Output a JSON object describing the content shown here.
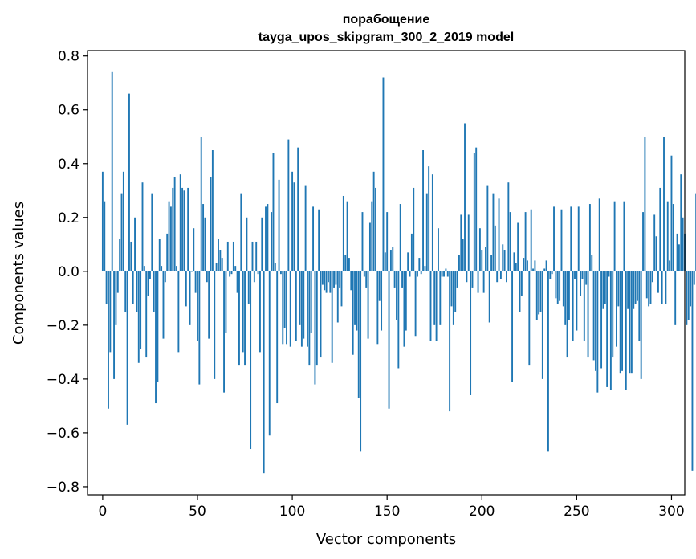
{
  "chart_data": {
    "type": "bar",
    "title": "порабощение",
    "subtitle": "tayga_upos_skipgram_300_2_2019 model",
    "xlabel": "Vector components",
    "ylabel": "Components values",
    "xlim": [
      -8,
      307
    ],
    "ylim": [
      -0.83,
      0.82
    ],
    "xticks": [
      0,
      50,
      100,
      150,
      200,
      250,
      300
    ],
    "yticks": [
      -0.8,
      -0.6,
      -0.4,
      -0.2,
      0.0,
      0.2,
      0.4,
      0.6,
      0.8
    ],
    "ytick_labels": [
      "−0.8",
      "−0.6",
      "−0.4",
      "−0.2",
      "0.0",
      "0.2",
      "0.4",
      "0.6",
      "0.8"
    ],
    "grid": false,
    "legend": "none",
    "bar_color": "#1f77b4",
    "values": [
      0.37,
      0.26,
      -0.12,
      -0.51,
      -0.3,
      0.74,
      -0.4,
      -0.2,
      -0.08,
      0.12,
      0.29,
      0.37,
      -0.15,
      -0.57,
      0.66,
      0.11,
      -0.12,
      0.2,
      -0.15,
      -0.34,
      -0.29,
      0.33,
      0.02,
      -0.32,
      -0.09,
      -0.03,
      0.29,
      -0.15,
      -0.49,
      -0.41,
      0.12,
      0.02,
      -0.25,
      -0.04,
      0.14,
      0.26,
      0.24,
      0.31,
      0.35,
      0.02,
      -0.3,
      0.36,
      0.31,
      0.3,
      -0.13,
      0.31,
      -0.2,
      0.0,
      0.16,
      -0.08,
      -0.26,
      -0.42,
      0.5,
      0.25,
      0.2,
      -0.04,
      -0.25,
      0.35,
      0.45,
      -0.4,
      0.03,
      0.12,
      0.08,
      0.05,
      -0.45,
      -0.23,
      0.11,
      -0.02,
      -0.01,
      0.11,
      0.02,
      -0.08,
      -0.35,
      0.29,
      -0.3,
      -0.35,
      0.2,
      -0.12,
      -0.66,
      0.11,
      -0.04,
      0.11,
      -0.01,
      -0.3,
      0.2,
      -0.75,
      0.24,
      0.25,
      -0.61,
      0.22,
      0.44,
      0.03,
      -0.49,
      0.34,
      -0.01,
      -0.27,
      -0.21,
      -0.27,
      0.49,
      -0.28,
      0.37,
      0.33,
      -0.26,
      0.46,
      -0.2,
      -0.28,
      -0.25,
      0.32,
      -0.28,
      -0.35,
      -0.23,
      0.24,
      -0.42,
      -0.35,
      0.23,
      -0.32,
      -0.05,
      -0.07,
      -0.08,
      -0.04,
      -0.08,
      -0.34,
      -0.06,
      -0.05,
      -0.19,
      -0.06,
      -0.13,
      0.28,
      0.06,
      0.26,
      0.05,
      -0.07,
      -0.31,
      -0.2,
      -0.22,
      -0.47,
      -0.67,
      0.22,
      -0.02,
      -0.06,
      -0.25,
      0.18,
      0.26,
      0.37,
      0.31,
      -0.27,
      -0.11,
      -0.22,
      0.72,
      0.07,
      0.22,
      -0.51,
      0.08,
      0.09,
      -0.06,
      -0.18,
      -0.36,
      0.25,
      -0.06,
      -0.28,
      -0.22,
      0.07,
      -0.02,
      0.14,
      0.31,
      -0.24,
      -0.02,
      0.05,
      -0.01,
      0.45,
      0.02,
      0.29,
      0.39,
      -0.26,
      0.36,
      -0.2,
      -0.26,
      0.16,
      -0.2,
      -0.02,
      -0.02,
      0.01,
      -0.02,
      -0.52,
      -0.13,
      -0.2,
      -0.15,
      -0.06,
      0.06,
      0.21,
      0.12,
      0.55,
      -0.04,
      0.21,
      -0.46,
      -0.06,
      0.44,
      0.46,
      -0.08,
      0.16,
      0.08,
      -0.08,
      0.09,
      0.32,
      -0.19,
      0.06,
      0.29,
      0.17,
      -0.04,
      0.27,
      -0.03,
      0.1,
      0.08,
      -0.04,
      0.33,
      0.22,
      -0.41,
      0.07,
      0.03,
      0.18,
      -0.15,
      -0.09,
      0.05,
      0.22,
      0.04,
      -0.35,
      0.23,
      0.01,
      0.04,
      -0.18,
      -0.16,
      -0.15,
      -0.4,
      0.01,
      0.04,
      -0.67,
      -0.03,
      -0.01,
      0.24,
      -0.1,
      -0.12,
      -0.11,
      0.23,
      -0.13,
      -0.2,
      -0.32,
      -0.18,
      0.24,
      -0.26,
      -0.03,
      -0.22,
      0.24,
      -0.09,
      -0.03,
      -0.26,
      -0.05,
      -0.32,
      0.25,
      0.06,
      -0.33,
      -0.37,
      -0.45,
      0.27,
      -0.36,
      -0.14,
      -0.12,
      -0.43,
      -0.02,
      -0.44,
      -0.32,
      0.26,
      -0.28,
      -0.13,
      -0.38,
      -0.37,
      0.26,
      -0.44,
      -0.14,
      -0.38,
      -0.38,
      -0.14,
      -0.12,
      -0.11,
      -0.26,
      -0.4,
      0.22,
      0.5,
      -0.1,
      -0.13,
      -0.12,
      -0.04,
      0.21,
      0.13,
      -0.08,
      0.31,
      -0.12,
      0.5,
      -0.12,
      0.26,
      0.04,
      0.43,
      0.25,
      -0.2,
      0.14,
      0.1,
      0.36,
      0.2,
      0.14,
      -0.2,
      -0.18,
      -0.13,
      -0.74,
      -0.05,
      0.29,
      -0.24
    ]
  }
}
